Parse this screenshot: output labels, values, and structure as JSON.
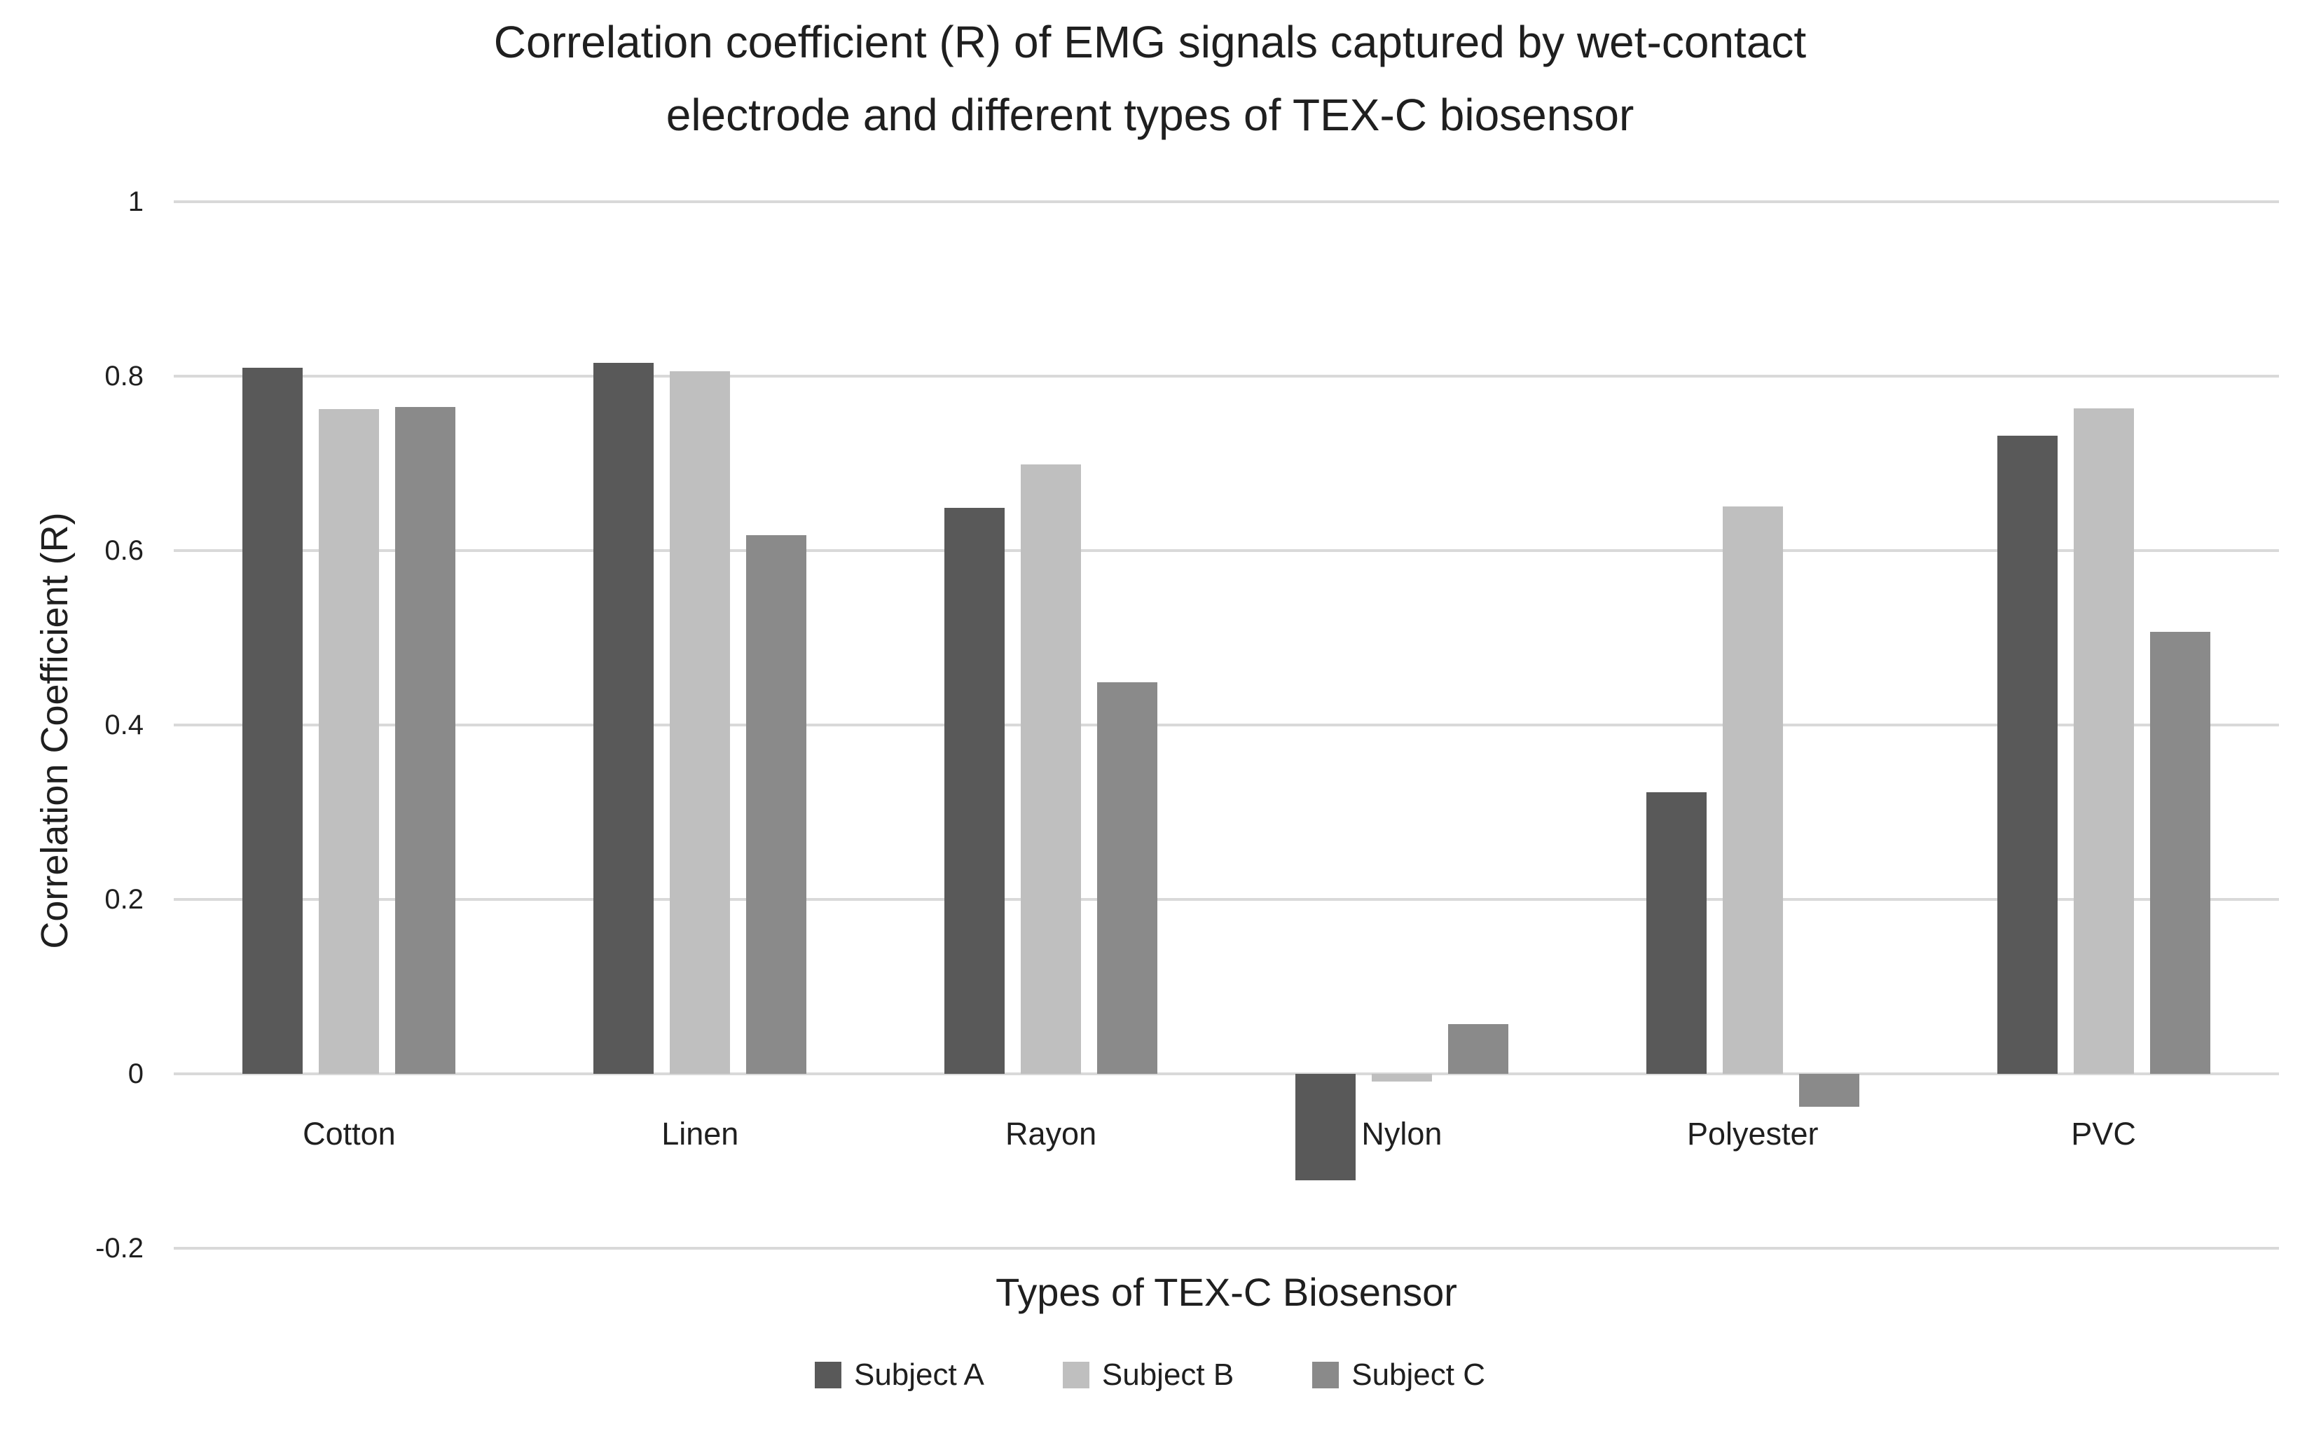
{
  "chart_data": {
    "type": "bar",
    "title": "Correlation coefficient (R) of EMG signals captured by wet-contact electrode and different types of TEX-C biosensor",
    "title_lines": [
      "Correlation coefficient (R) of EMG signals captured by wet-contact",
      "electrode and different types of TEX-C biosensor"
    ],
    "xlabel": "Types of TEX-C Biosensor",
    "ylabel": "Correlation Coefficient (R)",
    "categories": [
      "Cotton",
      "Linen",
      "Rayon",
      "Nylon",
      "Polyester",
      "PVC"
    ],
    "series": [
      {
        "name": "Subject A",
        "color": "#595959",
        "values": [
          0.81,
          0.815,
          0.649,
          -0.122,
          0.323,
          0.732
        ]
      },
      {
        "name": "Subject B",
        "color": "#bfbfbf",
        "values": [
          0.762,
          0.806,
          0.699,
          -0.009,
          0.651,
          0.763
        ]
      },
      {
        "name": "Subject C",
        "color": "#8a8a8a",
        "values": [
          0.765,
          0.618,
          0.449,
          0.057,
          -0.038,
          0.507
        ]
      }
    ],
    "ylim": [
      -0.2,
      1.0
    ],
    "yticks": [
      1,
      0.8,
      0.6,
      0.4,
      0.2,
      0,
      -0.2
    ],
    "ytick_labels": [
      "1",
      "0.8",
      "0.6",
      "0.4",
      "0.2",
      "0",
      "-0.2"
    ],
    "grid": true,
    "legend_position": "bottom",
    "gridline_color": "#d9d9d9",
    "background_color": "#ffffff",
    "text_color": "#1f1f1f"
  }
}
